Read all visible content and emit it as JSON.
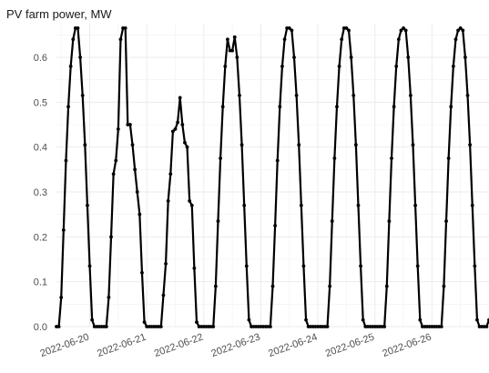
{
  "chart_data": {
    "type": "line",
    "title": "PV farm power, MW",
    "xlabel": "",
    "ylabel": "",
    "ylim": [
      0,
      0.675
    ],
    "yticks": [
      0.0,
      0.1,
      0.2,
      0.3,
      0.4,
      0.5,
      0.6
    ],
    "ytick_labels": [
      "0.0",
      "0.1",
      "0.2",
      "0.3",
      "0.4",
      "0.5",
      "0.6"
    ],
    "xlim": [
      "2022-06-19T10:00",
      "2022-06-27T00:00"
    ],
    "xticks": [
      "2022-06-20",
      "2022-06-21",
      "2022-06-22",
      "2022-06-23",
      "2022-06-24",
      "2022-06-25",
      "2022-06-26"
    ],
    "grid": true,
    "legend": false,
    "line_color": "#000000",
    "series": [
      {
        "x": [
          "2022-06-19T10:00",
          "2022-06-19T11:00",
          "2022-06-19T12:00",
          "2022-06-19T13:00",
          "2022-06-19T14:00",
          "2022-06-19T15:00",
          "2022-06-19T16:00",
          "2022-06-19T17:00",
          "2022-06-19T18:00",
          "2022-06-19T19:00",
          "2022-06-19T20:00",
          "2022-06-19T21:00",
          "2022-06-19T22:00",
          "2022-06-19T23:00",
          "2022-06-20T00:00",
          "2022-06-20T01:00",
          "2022-06-20T02:00",
          "2022-06-20T03:00",
          "2022-06-20T04:00",
          "2022-06-20T05:00",
          "2022-06-20T06:00",
          "2022-06-20T07:00",
          "2022-06-20T08:00",
          "2022-06-20T09:00",
          "2022-06-20T10:00",
          "2022-06-20T11:00",
          "2022-06-20T12:00",
          "2022-06-20T13:00",
          "2022-06-20T14:00",
          "2022-06-20T15:00",
          "2022-06-20T16:00",
          "2022-06-20T17:00",
          "2022-06-20T18:00",
          "2022-06-20T19:00",
          "2022-06-20T20:00",
          "2022-06-20T21:00",
          "2022-06-20T22:00",
          "2022-06-20T23:00",
          "2022-06-21T00:00",
          "2022-06-21T01:00",
          "2022-06-21T02:00",
          "2022-06-21T03:00",
          "2022-06-21T04:00",
          "2022-06-21T05:00",
          "2022-06-21T06:00",
          "2022-06-21T07:00",
          "2022-06-21T08:00",
          "2022-06-21T09:00",
          "2022-06-21T10:00",
          "2022-06-21T11:00",
          "2022-06-21T12:00",
          "2022-06-21T13:00",
          "2022-06-21T14:00",
          "2022-06-21T15:00",
          "2022-06-21T16:00",
          "2022-06-21T17:00",
          "2022-06-21T18:00",
          "2022-06-21T19:00",
          "2022-06-21T20:00",
          "2022-06-21T21:00",
          "2022-06-21T22:00",
          "2022-06-21T23:00",
          "2022-06-22T00:00",
          "2022-06-22T01:00",
          "2022-06-22T02:00",
          "2022-06-22T03:00",
          "2022-06-22T04:00",
          "2022-06-22T05:00",
          "2022-06-22T06:00",
          "2022-06-22T07:00",
          "2022-06-22T08:00",
          "2022-06-22T09:00",
          "2022-06-22T10:00",
          "2022-06-22T11:00",
          "2022-06-22T12:00",
          "2022-06-22T13:00",
          "2022-06-22T14:00",
          "2022-06-22T15:00",
          "2022-06-22T16:00",
          "2022-06-22T17:00",
          "2022-06-22T18:00",
          "2022-06-22T19:00",
          "2022-06-22T20:00",
          "2022-06-22T21:00",
          "2022-06-22T22:00",
          "2022-06-22T23:00",
          "2022-06-23T00:00",
          "2022-06-23T01:00",
          "2022-06-23T02:00",
          "2022-06-23T03:00",
          "2022-06-23T04:00",
          "2022-06-23T05:00",
          "2022-06-23T06:00",
          "2022-06-23T07:00",
          "2022-06-23T08:00",
          "2022-06-23T09:00",
          "2022-06-23T10:00",
          "2022-06-23T11:00",
          "2022-06-23T12:00",
          "2022-06-23T13:00",
          "2022-06-23T14:00",
          "2022-06-23T15:00",
          "2022-06-23T16:00",
          "2022-06-23T17:00",
          "2022-06-23T18:00",
          "2022-06-23T19:00",
          "2022-06-23T20:00",
          "2022-06-23T21:00",
          "2022-06-23T22:00",
          "2022-06-23T23:00",
          "2022-06-24T00:00",
          "2022-06-24T01:00",
          "2022-06-24T02:00",
          "2022-06-24T03:00",
          "2022-06-24T04:00",
          "2022-06-24T05:00",
          "2022-06-24T06:00",
          "2022-06-24T07:00",
          "2022-06-24T08:00",
          "2022-06-24T09:00",
          "2022-06-24T10:00",
          "2022-06-24T11:00",
          "2022-06-24T12:00",
          "2022-06-24T13:00",
          "2022-06-24T14:00",
          "2022-06-24T15:00",
          "2022-06-24T16:00",
          "2022-06-24T17:00",
          "2022-06-24T18:00",
          "2022-06-24T19:00",
          "2022-06-24T20:00",
          "2022-06-24T21:00",
          "2022-06-24T22:00",
          "2022-06-24T23:00",
          "2022-06-25T00:00",
          "2022-06-25T01:00",
          "2022-06-25T02:00",
          "2022-06-25T03:00",
          "2022-06-25T04:00",
          "2022-06-25T05:00",
          "2022-06-25T06:00",
          "2022-06-25T07:00",
          "2022-06-25T08:00",
          "2022-06-25T09:00",
          "2022-06-25T10:00",
          "2022-06-25T11:00",
          "2022-06-25T12:00",
          "2022-06-25T13:00",
          "2022-06-25T14:00",
          "2022-06-25T15:00",
          "2022-06-25T16:00",
          "2022-06-25T17:00",
          "2022-06-25T18:00",
          "2022-06-25T19:00",
          "2022-06-25T20:00",
          "2022-06-25T21:00",
          "2022-06-25T22:00",
          "2022-06-25T23:00",
          "2022-06-26T00:00",
          "2022-06-26T01:00",
          "2022-06-26T02:00",
          "2022-06-26T03:00",
          "2022-06-26T04:00",
          "2022-06-26T05:00",
          "2022-06-26T06:00",
          "2022-06-26T07:00",
          "2022-06-26T08:00",
          "2022-06-26T09:00",
          "2022-06-26T10:00",
          "2022-06-26T11:00",
          "2022-06-26T12:00",
          "2022-06-26T13:00",
          "2022-06-26T14:00",
          "2022-06-26T15:00",
          "2022-06-26T16:00",
          "2022-06-26T17:00",
          "2022-06-26T18:00",
          "2022-06-26T19:00",
          "2022-06-26T20:00",
          "2022-06-26T21:00",
          "2022-06-26T22:00",
          "2022-06-26T23:00",
          "2022-06-27T00:00"
        ],
        "y": [
          0.0,
          0.0,
          0.065,
          0.215,
          0.37,
          0.49,
          0.58,
          0.64,
          0.665,
          0.665,
          0.6,
          0.515,
          0.405,
          0.27,
          0.135,
          0.015,
          0.0,
          0.0,
          0.0,
          0.0,
          0.0,
          0.0,
          0.065,
          0.2,
          0.34,
          0.37,
          0.44,
          0.64,
          0.665,
          0.665,
          0.45,
          0.45,
          0.405,
          0.35,
          0.3,
          0.25,
          0.12,
          0.01,
          0.0,
          0.0,
          0.0,
          0.0,
          0.0,
          0.0,
          0.0,
          0.07,
          0.14,
          0.28,
          0.34,
          0.435,
          0.44,
          0.455,
          0.51,
          0.45,
          0.41,
          0.4,
          0.28,
          0.27,
          0.13,
          0.01,
          0.0,
          0.0,
          0.0,
          0.0,
          0.0,
          0.0,
          0.0,
          0.09,
          0.235,
          0.375,
          0.49,
          0.58,
          0.64,
          0.615,
          0.615,
          0.645,
          0.6,
          0.515,
          0.405,
          0.27,
          0.135,
          0.015,
          0.0,
          0.0,
          0.0,
          0.0,
          0.0,
          0.0,
          0.0,
          0.0,
          0.0,
          0.09,
          0.225,
          0.37,
          0.49,
          0.58,
          0.64,
          0.665,
          0.665,
          0.66,
          0.6,
          0.515,
          0.405,
          0.27,
          0.135,
          0.015,
          0.0,
          0.0,
          0.0,
          0.0,
          0.0,
          0.0,
          0.0,
          0.0,
          0.0,
          0.09,
          0.235,
          0.375,
          0.49,
          0.58,
          0.64,
          0.665,
          0.665,
          0.66,
          0.6,
          0.515,
          0.405,
          0.27,
          0.135,
          0.015,
          0.0,
          0.0,
          0.0,
          0.0,
          0.0,
          0.0,
          0.0,
          0.0,
          0.0,
          0.09,
          0.235,
          0.375,
          0.49,
          0.58,
          0.64,
          0.66,
          0.665,
          0.66,
          0.6,
          0.515,
          0.405,
          0.27,
          0.135,
          0.015,
          0.0,
          0.0,
          0.0,
          0.0,
          0.0,
          0.0,
          0.0,
          0.0,
          0.0,
          0.09,
          0.235,
          0.375,
          0.49,
          0.58,
          0.64,
          0.66,
          0.665,
          0.66,
          0.6,
          0.515,
          0.405,
          0.27,
          0.135,
          0.015,
          0.0,
          0.0,
          0.0,
          0.0,
          0.015
        ]
      }
    ]
  }
}
